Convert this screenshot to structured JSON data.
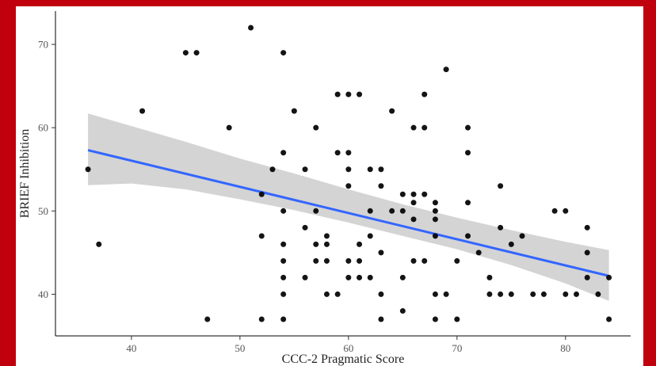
{
  "chart_data": {
    "type": "scatter",
    "title": "",
    "xlabel": "CCC-2 Pragmatic Score",
    "ylabel": "BRIEF Inhibition",
    "xlim": [
      33,
      86
    ],
    "ylim": [
      35,
      74
    ],
    "xticks": [
      40,
      50,
      60,
      70,
      80
    ],
    "yticks": [
      40,
      50,
      60,
      70
    ],
    "grid": false,
    "legend": "none",
    "colors": {
      "points": "#000000",
      "fit_line": "#3366ff",
      "ci_band": "#cccccc",
      "frame": "#c0000c"
    },
    "points": [
      [
        36,
        55
      ],
      [
        37,
        46
      ],
      [
        41,
        62
      ],
      [
        45,
        69
      ],
      [
        46,
        69
      ],
      [
        47,
        37
      ],
      [
        49,
        60
      ],
      [
        51,
        72
      ],
      [
        52,
        52
      ],
      [
        52,
        47
      ],
      [
        52,
        37
      ],
      [
        53,
        55
      ],
      [
        54,
        69
      ],
      [
        54,
        57
      ],
      [
        54,
        50
      ],
      [
        54,
        46
      ],
      [
        54,
        44
      ],
      [
        54,
        42
      ],
      [
        54,
        40
      ],
      [
        54,
        37
      ],
      [
        55,
        62
      ],
      [
        56,
        55
      ],
      [
        56,
        48
      ],
      [
        56,
        42
      ],
      [
        57,
        60
      ],
      [
        57,
        50
      ],
      [
        57,
        46
      ],
      [
        57,
        44
      ],
      [
        58,
        47
      ],
      [
        58,
        46
      ],
      [
        58,
        44
      ],
      [
        58,
        40
      ],
      [
        59,
        64
      ],
      [
        59,
        57
      ],
      [
        59,
        40
      ],
      [
        60,
        64
      ],
      [
        60,
        57
      ],
      [
        60,
        55
      ],
      [
        60,
        53
      ],
      [
        60,
        44
      ],
      [
        60,
        42
      ],
      [
        61,
        64
      ],
      [
        61,
        46
      ],
      [
        61,
        44
      ],
      [
        61,
        42
      ],
      [
        62,
        55
      ],
      [
        62,
        50
      ],
      [
        62,
        47
      ],
      [
        62,
        42
      ],
      [
        63,
        55
      ],
      [
        63,
        53
      ],
      [
        63,
        45
      ],
      [
        63,
        40
      ],
      [
        63,
        37
      ],
      [
        64,
        62
      ],
      [
        64,
        50
      ],
      [
        65,
        52
      ],
      [
        65,
        50
      ],
      [
        65,
        42
      ],
      [
        65,
        38
      ],
      [
        66,
        60
      ],
      [
        66,
        52
      ],
      [
        66,
        51
      ],
      [
        66,
        49
      ],
      [
        66,
        44
      ],
      [
        67,
        64
      ],
      [
        67,
        60
      ],
      [
        67,
        52
      ],
      [
        67,
        44
      ],
      [
        68,
        51
      ],
      [
        68,
        50
      ],
      [
        68,
        49
      ],
      [
        68,
        47
      ],
      [
        68,
        40
      ],
      [
        68,
        37
      ],
      [
        69,
        67
      ],
      [
        69,
        40
      ],
      [
        70,
        44
      ],
      [
        70,
        37
      ],
      [
        71,
        60
      ],
      [
        71,
        57
      ],
      [
        71,
        51
      ],
      [
        71,
        47
      ],
      [
        72,
        45
      ],
      [
        73,
        42
      ],
      [
        73,
        40
      ],
      [
        74,
        53
      ],
      [
        74,
        48
      ],
      [
        74,
        40
      ],
      [
        75,
        46
      ],
      [
        75,
        40
      ],
      [
        76,
        47
      ],
      [
        77,
        40
      ],
      [
        78,
        40
      ],
      [
        79,
        50
      ],
      [
        80,
        50
      ],
      [
        80,
        40
      ],
      [
        81,
        40
      ],
      [
        82,
        48
      ],
      [
        82,
        45
      ],
      [
        82,
        42
      ],
      [
        83,
        40
      ],
      [
        84,
        42
      ],
      [
        84,
        37
      ]
    ],
    "fit_line": {
      "x": [
        36,
        84
      ],
      "y": [
        57.3,
        42.2
      ]
    },
    "confidence_band": {
      "x": [
        36,
        40,
        45,
        50,
        55,
        60,
        65,
        70,
        75,
        80,
        84
      ],
      "lower": [
        53.1,
        53.3,
        52.6,
        51.4,
        50.1,
        48.6,
        47.0,
        45.4,
        43.5,
        41.3,
        39.2
      ],
      "upper": [
        61.7,
        60.2,
        58.3,
        56.3,
        54.5,
        52.6,
        50.8,
        49.2,
        47.7,
        46.3,
        45.3
      ]
    }
  }
}
